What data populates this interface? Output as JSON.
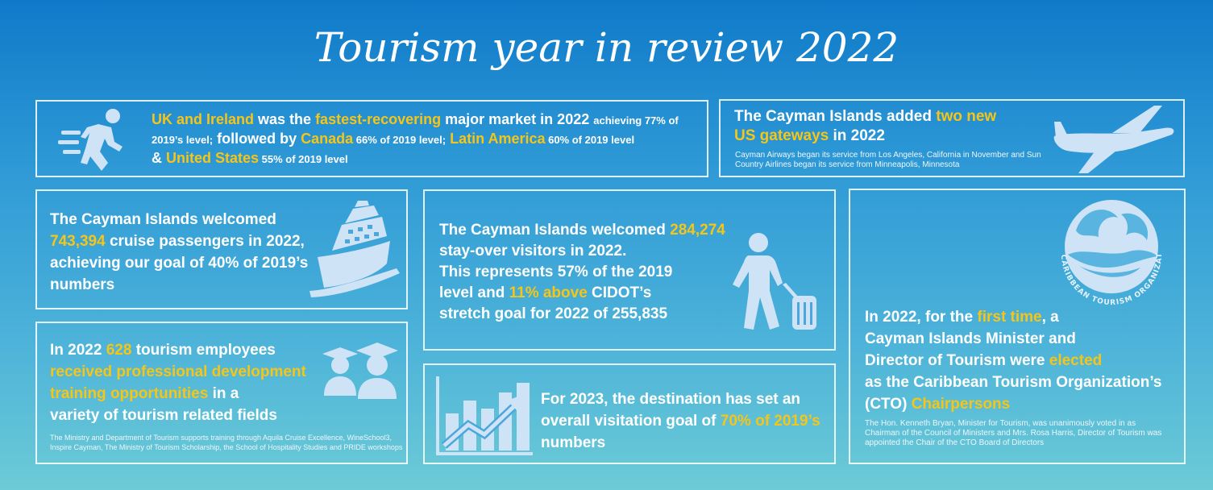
{
  "title": "Tourism year in review 2022",
  "colors": {
    "accent": "#f5c518",
    "border": "#ffffff"
  },
  "card1": {
    "icon": "runner-icon",
    "t1": "UK and Ireland",
    "t2": " was the ",
    "t3": "fastest-recovering",
    "t4": " major market in 2022 ",
    "t5": "achieving 77% of 2019’s level;",
    "t6": " followed by ",
    "t7": "Canada",
    "t8": " 66% of 2019 level;",
    "t9": "Latin America",
    "t10": " 60% of 2019 level",
    "t11": "& ",
    "t12": "United States",
    "t13": " 55% of 2019 level"
  },
  "card2": {
    "icon": "airplane-icon",
    "t1": "The Cayman Islands added ",
    "t2": "two new",
    "t3": "US gateways",
    "t4": " in 2022",
    "small": "Cayman Airways began its service from Los Angeles, California in November and Sun Country Airlines began its service from Minneapolis, Minnesota"
  },
  "card3": {
    "icon": "cruise-ship-icon",
    "t1": "The Cayman Islands welcomed",
    "t2": "743,394",
    "t3": " cruise passengers in 2022,",
    "t4": "achieving our goal of 40% of 2019’s numbers"
  },
  "card4": {
    "icon": "traveler-icon",
    "t1": "The Cayman Islands welcomed ",
    "t2": "284,274",
    "t3": "stay-over visitors in 2022.",
    "t4": "This represents 57% of the 2019",
    "t5": "level and ",
    "t6": "11% above",
    "t7": " CIDOT’s",
    "t8": "stretch goal for 2022 of 255,835"
  },
  "card5": {
    "icon": "cto-logo-icon",
    "logo_text": "CARIBBEAN TOURISM ORGANIZATION",
    "t1": "In 2022, for the ",
    "t2": "first time",
    "t3": ", a",
    "t4": "Cayman Islands Minister and",
    "t5": "Director of Tourism were ",
    "t6": "elected",
    "t7": "as the Caribbean Tourism Organization’s",
    "t8": "(CTO) ",
    "t9": "Chairpersons",
    "small": "The Hon. Kenneth Bryan, Minister for Tourism, was unanimously voted in as Chairman of the Council of Ministers and Mrs. Rosa Harris, Director of Tourism was appointed the Chair of the CTO Board of Directors"
  },
  "card6": {
    "icon": "graduates-icon",
    "t1": "In 2022 ",
    "t2": "628",
    "t3": " tourism employees",
    "t4": "received professional development training opportunities",
    "t5": " in a",
    "t6": "variety of tourism related fields",
    "small": "The Ministry and Department of Tourism supports training through Aquila Cruise Excellence, WineSchool3, Inspire Cayman, The Ministry of Tourism Scholarship, the School of Hospitality Studies and PRIDE workshops"
  },
  "card7": {
    "icon": "growth-chart-icon",
    "t1": "For 2023, the destination has set an",
    "t2": "overall visitation goal of ",
    "t3": "70% of 2019’s",
    "t4": "numbers"
  }
}
